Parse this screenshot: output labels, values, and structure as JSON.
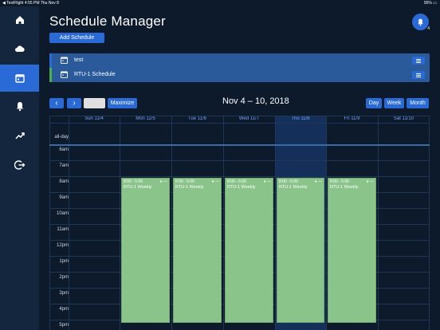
{
  "status_bar": {
    "left": "◀ TestFlight  4:55 PM  Thu Nov 8",
    "right": "95% ▭"
  },
  "header": {
    "title": "Schedule Manager",
    "notif_count": "4",
    "add_label": "Add Schedule"
  },
  "schedules": [
    {
      "name": "test",
      "color": "#2a6ad6"
    },
    {
      "name": "RTU-1 Schedule",
      "color": "#4caf50"
    }
  ],
  "calendar": {
    "range": "Nov 4 – 10, 2018",
    "maximize_label": "Maximize",
    "prev_label": "‹",
    "next_label": "›",
    "view_day": "Day",
    "view_week": "Week",
    "view_month": "Month",
    "days": [
      "Sun 11/4",
      "Mon 11/5",
      "Tue 11/6",
      "Wed 11/7",
      "Thu 11/8",
      "Fri 11/9",
      "Sat 11/10"
    ],
    "allday_label": "all-day",
    "times": [
      "6am",
      "7am",
      "8am",
      "9am",
      "10am",
      "11am",
      "12pm",
      "1pm",
      "2pm",
      "3pm",
      "4pm",
      "5pm"
    ],
    "event_time": "8:00 - 5:00",
    "event_name": "RTU-1 Weekly",
    "event_color": "#8bc48a"
  }
}
